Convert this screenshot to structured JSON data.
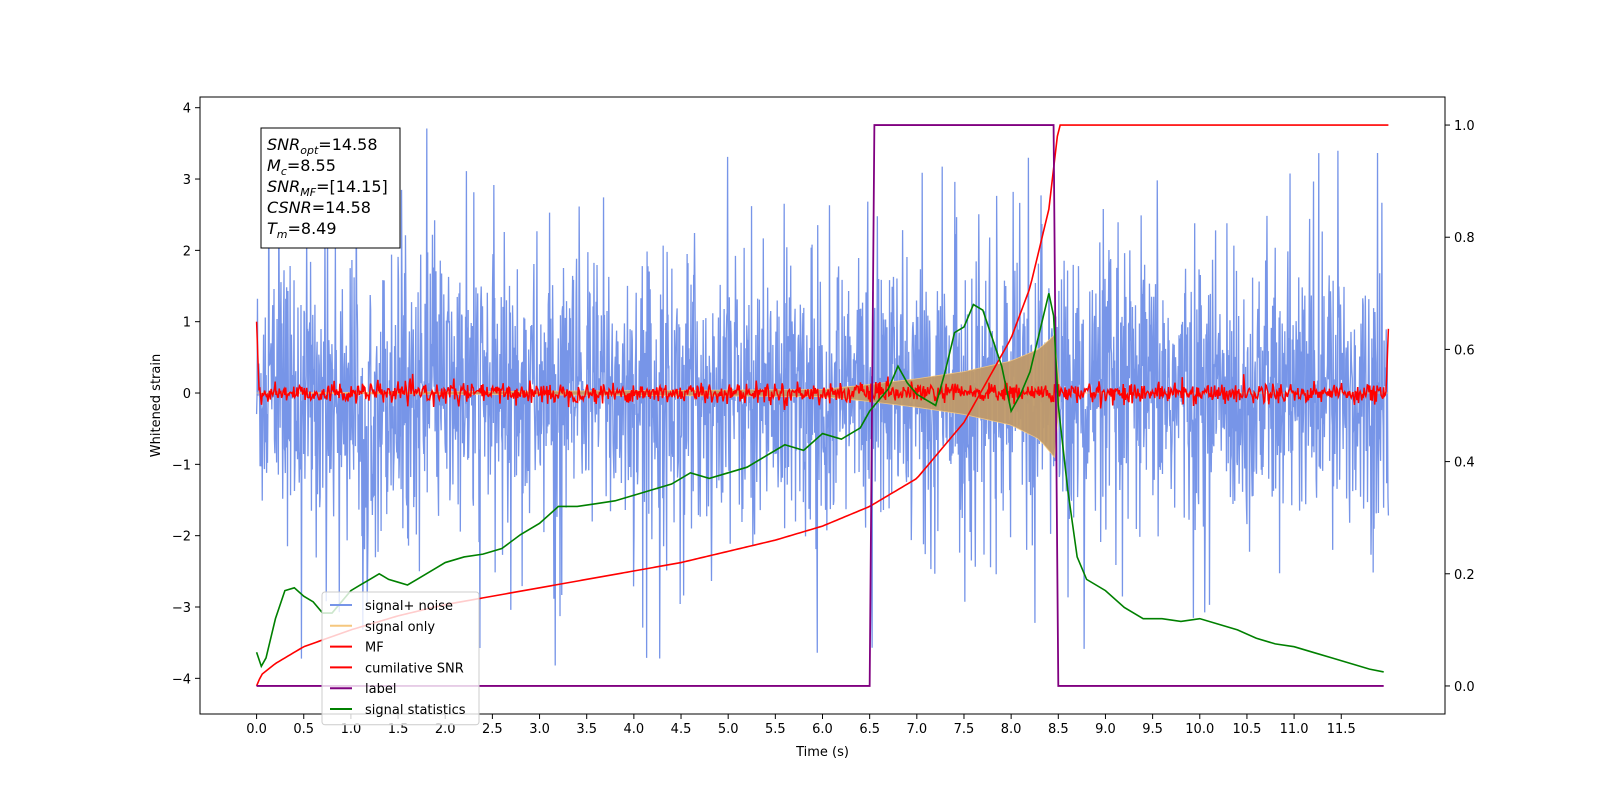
{
  "chart_data": {
    "type": "line",
    "title": "",
    "xlabel": "Time (s)",
    "ylabel": "Whitened strain",
    "ylabel_right": "",
    "xlim": [
      -0.6,
      12.6
    ],
    "ylim": [
      -4.5,
      4.15
    ],
    "ylim_right": [
      -0.05,
      1.05
    ],
    "x_ticks": [
      0.0,
      0.5,
      1.0,
      1.5,
      2.0,
      2.5,
      3.0,
      3.5,
      4.0,
      4.5,
      5.0,
      5.5,
      6.0,
      6.5,
      7.0,
      7.5,
      8.0,
      8.5,
      9.0,
      9.5,
      10.0,
      10.5,
      11.0,
      11.5
    ],
    "x_tick_labels": [
      "0.0",
      "0.5",
      "1.0",
      "1.5",
      "2.0",
      "2.5",
      "3.0",
      "3.5",
      "4.0",
      "4.5",
      "5.0",
      "5.5",
      "6.0",
      "6.5",
      "7.0",
      "7.5",
      "8.0",
      "8.5",
      "9.0",
      "9.5",
      "10.0",
      "10.5",
      "11.0",
      "11.5"
    ],
    "y_ticks": [
      -4,
      -3,
      -2,
      -1,
      0,
      1,
      2,
      3,
      4
    ],
    "y_tick_labels": [
      "−4",
      "−3",
      "−2",
      "−1",
      "0",
      "1",
      "2",
      "3",
      "4"
    ],
    "y_ticks_right": [
      0.0,
      0.2,
      0.4,
      0.6,
      0.8,
      1.0
    ],
    "y_tick_labels_right": [
      "0.0",
      "0.2",
      "0.4",
      "0.6",
      "0.8",
      "1.0"
    ],
    "grid": false,
    "legend_position": "lower-left",
    "annotation": {
      "lines": [
        {
          "base": "SNR",
          "sub": "opt",
          "text": "=14.58"
        },
        {
          "base": "M",
          "sub": "c",
          "text": "=8.55"
        },
        {
          "base": "SNR",
          "sub": "MF",
          "text": "=[14.15]"
        },
        {
          "base": "CSNR",
          "sub": "",
          "text": "=14.58"
        },
        {
          "base": "T",
          "sub": "m",
          "text": "=8.49"
        }
      ]
    },
    "series": [
      {
        "name": "signal+ noise",
        "kind": "noise_band",
        "axis": "left",
        "color": "#7795e8",
        "x_range": [
          0.0,
          12.0
        ],
        "typical_amplitude": 1.8,
        "peak_amplitude": 3.75
      },
      {
        "name": "signal only",
        "kind": "chirp_envelope",
        "axis": "left",
        "color": "#f5c77e",
        "x": [
          0.0,
          6.0,
          6.5,
          7.0,
          7.5,
          8.0,
          8.3,
          8.49,
          8.5,
          12.0
        ],
        "upper": [
          0.0,
          0.05,
          0.12,
          0.2,
          0.3,
          0.45,
          0.62,
          0.85,
          0.0,
          0.0
        ],
        "lower": [
          0.0,
          -0.05,
          -0.12,
          -0.2,
          -0.3,
          -0.45,
          -0.65,
          -0.95,
          0.0,
          0.0
        ]
      },
      {
        "name": "MF",
        "kind": "noise_line",
        "axis": "left",
        "color": "#ff0000",
        "x_range": [
          0.0,
          12.0
        ],
        "center": 0.0,
        "noise_amplitude": 0.1,
        "edge_values": [
          1.0,
          0.9
        ]
      },
      {
        "name": "cumilative SNR",
        "axis": "right",
        "color": "#ff0000",
        "x": [
          0.0,
          0.05,
          0.2,
          0.5,
          1.0,
          1.5,
          2.0,
          2.5,
          3.0,
          3.5,
          4.0,
          4.5,
          5.0,
          5.5,
          6.0,
          6.5,
          7.0,
          7.5,
          8.0,
          8.2,
          8.4,
          8.49,
          8.5,
          12.0
        ],
        "values": [
          0.0,
          0.02,
          0.04,
          0.07,
          0.1,
          0.125,
          0.145,
          0.16,
          0.175,
          0.19,
          0.205,
          0.22,
          0.24,
          0.26,
          0.285,
          0.32,
          0.37,
          0.47,
          0.62,
          0.71,
          0.85,
          0.98,
          1.0,
          1.0
        ]
      },
      {
        "name": "label",
        "axis": "right",
        "color": "#800080",
        "x": [
          0.0,
          6.5,
          6.55,
          8.45,
          8.5,
          11.95
        ],
        "values": [
          0.0,
          0.0,
          1.0,
          1.0,
          0.0,
          0.0
        ]
      },
      {
        "name": "signal statistics",
        "axis": "right",
        "color": "#008000",
        "x": [
          0.0,
          0.05,
          0.1,
          0.2,
          0.3,
          0.4,
          0.5,
          0.6,
          0.7,
          0.8,
          0.9,
          1.0,
          1.1,
          1.2,
          1.3,
          1.4,
          1.5,
          1.6,
          1.7,
          1.8,
          1.9,
          2.0,
          2.2,
          2.4,
          2.6,
          2.8,
          3.0,
          3.2,
          3.4,
          3.6,
          3.8,
          4.0,
          4.2,
          4.4,
          4.6,
          4.8,
          5.0,
          5.2,
          5.4,
          5.6,
          5.8,
          6.0,
          6.2,
          6.4,
          6.5,
          6.6,
          6.7,
          6.8,
          6.9,
          7.0,
          7.1,
          7.2,
          7.3,
          7.4,
          7.5,
          7.6,
          7.7,
          7.8,
          7.9,
          8.0,
          8.1,
          8.2,
          8.3,
          8.4,
          8.45,
          8.5,
          8.6,
          8.7,
          8.8,
          9.0,
          9.2,
          9.4,
          9.6,
          9.8,
          10.0,
          10.2,
          10.4,
          10.6,
          10.8,
          11.0,
          11.2,
          11.4,
          11.6,
          11.8,
          11.95
        ],
        "values": [
          0.06,
          0.035,
          0.05,
          0.12,
          0.17,
          0.175,
          0.16,
          0.15,
          0.13,
          0.13,
          0.15,
          0.17,
          0.18,
          0.19,
          0.2,
          0.19,
          0.185,
          0.18,
          0.19,
          0.2,
          0.21,
          0.22,
          0.23,
          0.235,
          0.245,
          0.27,
          0.29,
          0.32,
          0.32,
          0.325,
          0.33,
          0.34,
          0.35,
          0.36,
          0.38,
          0.37,
          0.38,
          0.39,
          0.41,
          0.43,
          0.42,
          0.45,
          0.44,
          0.46,
          0.49,
          0.51,
          0.53,
          0.57,
          0.54,
          0.52,
          0.51,
          0.5,
          0.56,
          0.63,
          0.64,
          0.68,
          0.67,
          0.62,
          0.57,
          0.49,
          0.52,
          0.56,
          0.63,
          0.7,
          0.66,
          0.5,
          0.35,
          0.23,
          0.19,
          0.17,
          0.14,
          0.12,
          0.12,
          0.115,
          0.12,
          0.11,
          0.1,
          0.085,
          0.075,
          0.07,
          0.06,
          0.05,
          0.04,
          0.03,
          0.025
        ]
      }
    ]
  }
}
